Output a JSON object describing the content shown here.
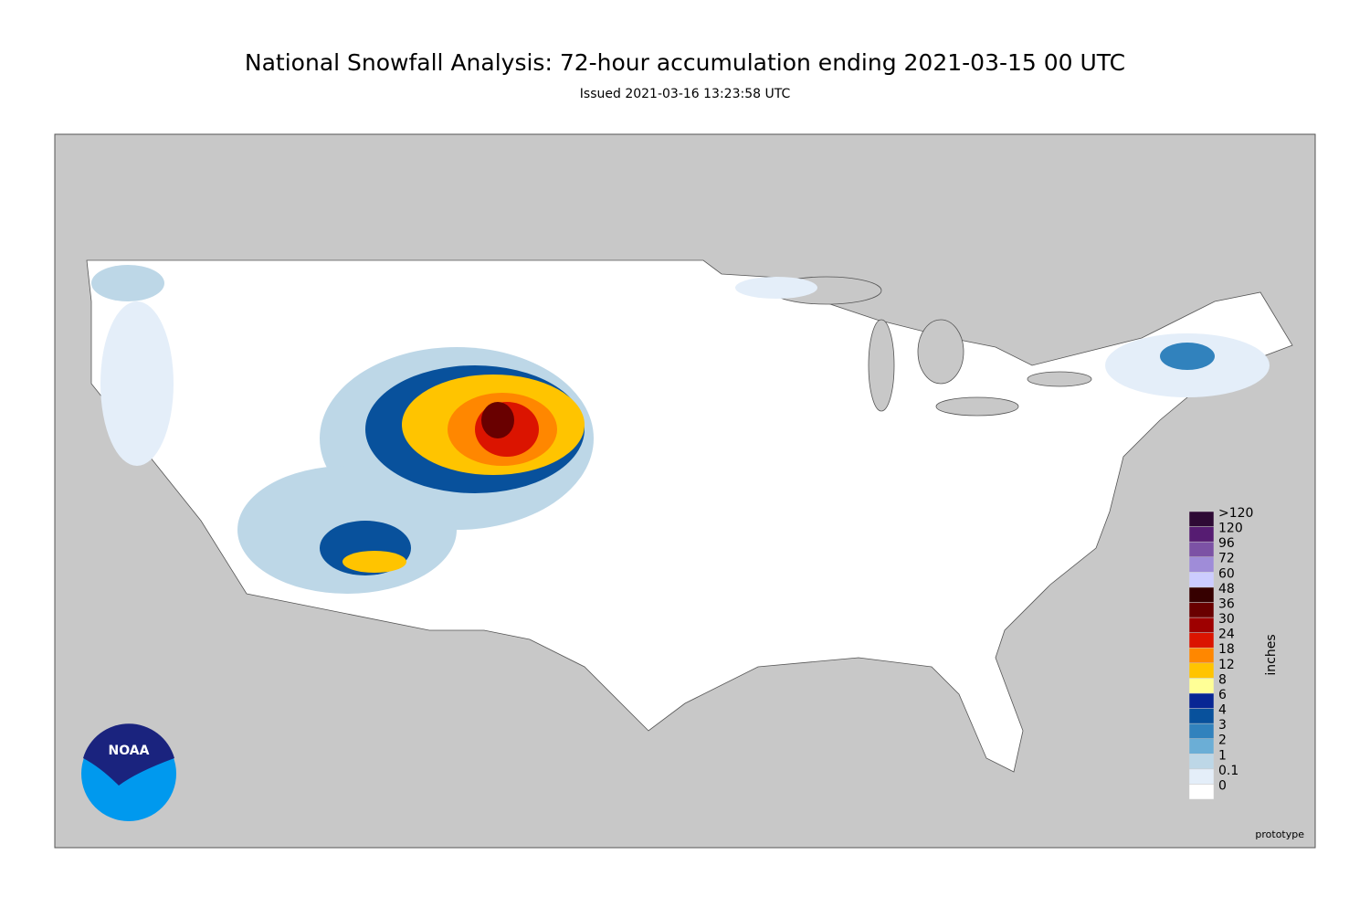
{
  "header": {
    "title": "National Snowfall Analysis: 72-hour accumulation ending 2021-03-15 00 UTC",
    "subtitle": "Issued 2021-03-16 13:23:58 UTC"
  },
  "legend": {
    "title": "inches",
    "levels": [
      {
        "label": "0",
        "color": "#ffffff"
      },
      {
        "label": "0.1",
        "color": "#e4eef9"
      },
      {
        "label": "1",
        "color": "#bdd7e7"
      },
      {
        "label": "2",
        "color": "#6baed6"
      },
      {
        "label": "3",
        "color": "#3182bd"
      },
      {
        "label": "4",
        "color": "#08519c"
      },
      {
        "label": "6",
        "color": "#082694"
      },
      {
        "label": "8",
        "color": "#ffff96"
      },
      {
        "label": "12",
        "color": "#ffc400"
      },
      {
        "label": "18",
        "color": "#ff8700"
      },
      {
        "label": "24",
        "color": "#db1400"
      },
      {
        "label": "30",
        "color": "#9e0000"
      },
      {
        "label": "36",
        "color": "#690000"
      },
      {
        "label": "48",
        "color": "#360000"
      },
      {
        "label": "60",
        "color": "#ccccff"
      },
      {
        "label": "72",
        "color": "#9f8cd8"
      },
      {
        "label": "96",
        "color": "#7c52a5"
      },
      {
        "label": "120",
        "color": "#561c72"
      },
      {
        "label": ">120",
        "color": "#2e0a35"
      }
    ]
  },
  "logo": {
    "text": "NOAA"
  },
  "footer": {
    "note": "prototype"
  }
}
